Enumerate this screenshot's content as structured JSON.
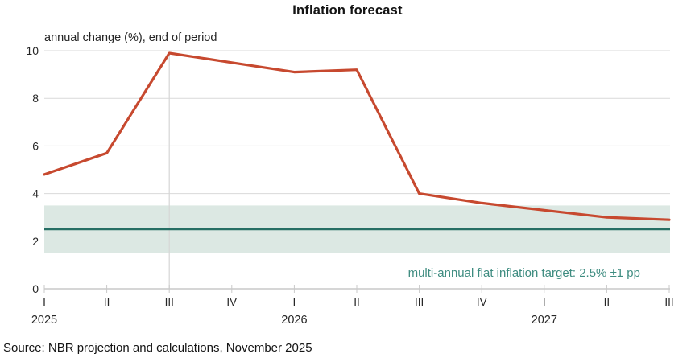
{
  "chart_data": {
    "type": "line",
    "title": "Inflation forecast",
    "subtitle": "annual change (%), end of period",
    "xlabel": "",
    "ylabel": "",
    "ylim": [
      0,
      10
    ],
    "y_ticks": [
      0,
      2,
      4,
      6,
      8,
      10
    ],
    "grid": "horizontal",
    "legend": "none",
    "x_tick_labels": [
      "I",
      "II",
      "III",
      "IV",
      "I",
      "II",
      "III",
      "IV",
      "I",
      "II",
      "III"
    ],
    "year_labels": [
      {
        "index": 0,
        "label": "2025"
      },
      {
        "index": 4,
        "label": "2026"
      },
      {
        "index": 8,
        "label": "2027"
      }
    ],
    "series": [
      {
        "name": "inflation forecast, annual change (%), end of period",
        "color": "#c7492f",
        "values": [
          4.8,
          5.7,
          9.9,
          9.5,
          9.1,
          9.2,
          4.0,
          3.6,
          3.3,
          3.0,
          2.9
        ]
      }
    ],
    "target_line": {
      "label": "multi-annual flat inflation target",
      "value": 2.5,
      "color": "#266e64"
    },
    "target_band": {
      "from": 1.5,
      "to": 3.5,
      "color": "#dce8e3"
    },
    "forecast_start_index": 2,
    "annotation": "multi-annual flat inflation target: 2.5% ±1 pp",
    "annotation_color": "#3e8c80",
    "gridline_color": "#d9d9d9",
    "axis_color": "#c9c9c9"
  },
  "source": {
    "text": "Source: NBR projection and calculations, November 2025"
  }
}
